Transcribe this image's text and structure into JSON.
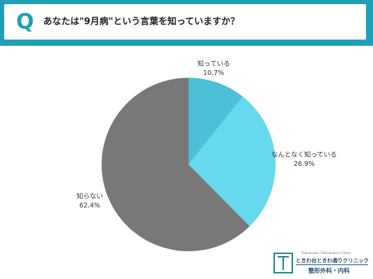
{
  "header": {
    "badge": "Q",
    "question": "あなたは\"9月病\"という言葉を知っていますか？",
    "accent_color": "#1fa0b5"
  },
  "chart_data": {
    "type": "pie",
    "slices": [
      {
        "label": "知っている",
        "value": 10.7,
        "display": "10.7%",
        "color": "#4bc0d6"
      },
      {
        "label": "なんとなく知っている",
        "value": 26.9,
        "display": "26.9%",
        "color": "#66d9ee"
      },
      {
        "label": "知らない",
        "value": 62.4,
        "display": "62.4%",
        "color": "#787878"
      }
    ],
    "start_angle_deg": 0,
    "direction": "clockwise",
    "legend": "none"
  },
  "logo": {
    "name_en": "Tokiwadai Tokiwadori Clinic",
    "name_jp": "ときわ台ときわ通りクリニック",
    "departments": "整形外科・内科"
  }
}
